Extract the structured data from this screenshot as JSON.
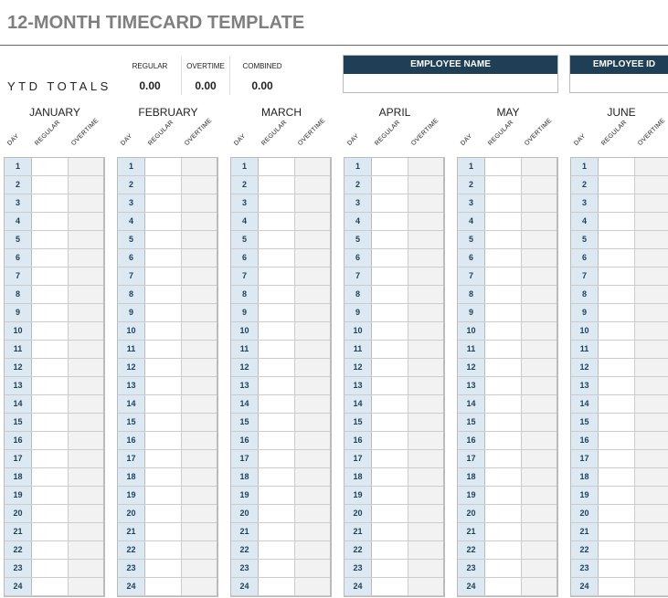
{
  "title": "12-MONTH TIMECARD TEMPLATE",
  "ytd": {
    "label": "YTD TOTALS",
    "regular_label": "REGULAR",
    "regular": "0.00",
    "overtime_label": "OVERTIME",
    "overtime": "0.00",
    "combined_label": "COMBINED",
    "combined": "0.00"
  },
  "employee": {
    "name_label": "EMPLOYEE NAME",
    "name": "",
    "id_label": "EMPLOYEE ID",
    "id": ""
  },
  "columns": {
    "day": "DAY",
    "regular": "REGULAR",
    "overtime": "OVERTIME"
  },
  "months": [
    "JANUARY",
    "FEBRUARY",
    "MARCH",
    "APRIL",
    "MAY",
    "JUNE"
  ],
  "days": [
    1,
    2,
    3,
    4,
    5,
    6,
    7,
    8,
    9,
    10,
    11,
    12,
    13,
    14,
    15,
    16,
    17,
    18,
    19,
    20,
    21,
    22,
    23,
    24
  ],
  "colors": {
    "header": "#1f3f57",
    "day_cell": "#dce9f2",
    "overtime_cell": "#f2f2f2"
  }
}
